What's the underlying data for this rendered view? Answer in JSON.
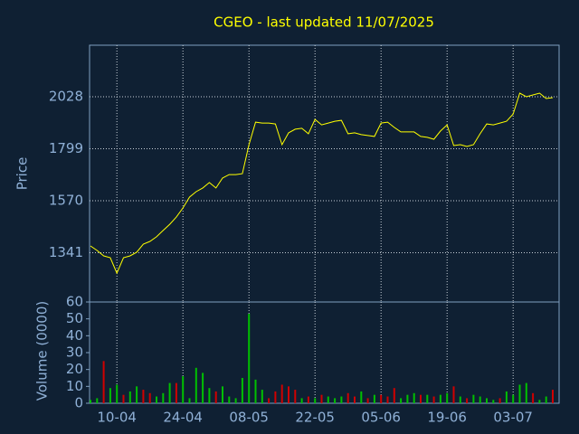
{
  "chart_data": {
    "type": "line",
    "title": "CGEO - last updated 11/07/2025",
    "ylabel": "Price",
    "y2label": "Volume (0000)",
    "categories": [
      null,
      null,
      null,
      null,
      "10-04",
      null,
      null,
      null,
      null,
      null,
      null,
      null,
      null,
      null,
      "24-04",
      null,
      null,
      null,
      null,
      null,
      null,
      null,
      null,
      null,
      "08-05",
      null,
      null,
      null,
      null,
      null,
      null,
      null,
      null,
      null,
      "22-05",
      null,
      null,
      null,
      null,
      null,
      null,
      null,
      null,
      null,
      "05-06",
      null,
      null,
      null,
      null,
      null,
      null,
      null,
      null,
      null,
      "19-06",
      null,
      null,
      null,
      null,
      null,
      null,
      null,
      null,
      null,
      "03-07",
      null,
      null,
      null,
      null,
      null,
      null
    ],
    "series": [
      {
        "color": "#ffff00",
        "values": [
          1371,
          1351,
          1327,
          1319,
          1251,
          1319,
          1327,
          1343,
          1379,
          1391,
          1411,
          1439,
          1466,
          1498,
          1538,
          1586,
          1610,
          1626,
          1650,
          1626,
          1670,
          1685,
          1685,
          1689,
          1817,
          1916,
          1912,
          1912,
          1908,
          1817,
          1869,
          1885,
          1889,
          1865,
          1928,
          1904,
          1912,
          1920,
          1924,
          1865,
          1869,
          1861,
          1857,
          1853,
          1912,
          1916,
          1893,
          1873,
          1873,
          1873,
          1853,
          1849,
          1841,
          1877,
          1904,
          1813,
          1817,
          1809,
          1817,
          1865,
          1908,
          1904,
          1912,
          1920,
          1952,
          2044,
          2028,
          2036,
          2044,
          2020,
          2024
        ]
      },
      {
        "type": "bar",
        "axis": "y2",
        "values": [
          2,
          3,
          25,
          9,
          11,
          5,
          7,
          10,
          8,
          6,
          4,
          6,
          12,
          12,
          16,
          3,
          21,
          18,
          9,
          7,
          10,
          4,
          3,
          15,
          53,
          14,
          8,
          3,
          7,
          11,
          10,
          8,
          3,
          4,
          3,
          5,
          4,
          3,
          4,
          6,
          4,
          7,
          3,
          5,
          5,
          4,
          9,
          3,
          5,
          6,
          5,
          5,
          4,
          5,
          6,
          10,
          4,
          3,
          5,
          4,
          3,
          2,
          3,
          7,
          5,
          11,
          12,
          6,
          2,
          4,
          8
        ],
        "colors": [
          "#00c000",
          "#00c000",
          "#d00000",
          "#00c000",
          "#00c000",
          "#d00000",
          "#00c000",
          "#00c000",
          "#d00000",
          "#d00000",
          "#00c000",
          "#00c000",
          "#00c000",
          "#d00000",
          "#00c000",
          "#00c000",
          "#00c000",
          "#00c000",
          "#00c000",
          "#d00000",
          "#00c000",
          "#00c000",
          "#00c000",
          "#00c000",
          "#00c000",
          "#00c000",
          "#00c000",
          "#d00000",
          "#d00000",
          "#d00000",
          "#d00000",
          "#d00000",
          "#00c000",
          "#d00000",
          "#00c000",
          "#d00000",
          "#00c000",
          "#00c000",
          "#00c000",
          "#d00000",
          "#d00000",
          "#00c000",
          "#d00000",
          "#00c000",
          "#d00000",
          "#d00000",
          "#d00000",
          "#00c000",
          "#00c000",
          "#00c000",
          "#d00000",
          "#00c000",
          "#d00000",
          "#00c000",
          "#00c000",
          "#d00000",
          "#00c000",
          "#d00000",
          "#00c000",
          "#00c000",
          "#00c000",
          "#00c000",
          "#d00000",
          "#00c000",
          "#00c000",
          "#00c000",
          "#00c000",
          "#d00000",
          "#00c000",
          "#00c000",
          "#d00000"
        ]
      }
    ],
    "ylim": [
      1124,
      2255
    ],
    "yticks": [
      1341,
      1570,
      1799,
      2028
    ],
    "y2lim": [
      0,
      60
    ],
    "y2ticks": [
      0,
      10,
      20,
      30,
      40,
      50,
      60
    ],
    "grid": true
  }
}
